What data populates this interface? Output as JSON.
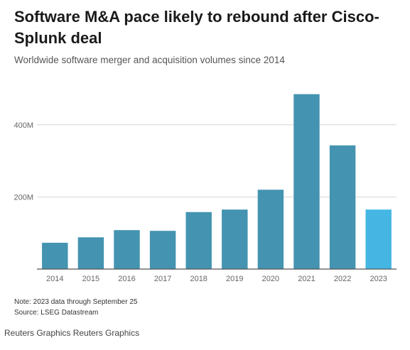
{
  "header": {
    "title": "Software M&A pace likely to rebound after Cisco-Splunk deal",
    "subtitle": "Worldwide software merger and acquisition volumes since 2014"
  },
  "footer": {
    "note": "Note: 2023 data through September 25",
    "source": "Source: LSEG Datastream",
    "credit": "Reuters Graphics Reuters Graphics"
  },
  "colors": {
    "bar": "#4493b1",
    "highlight": "#45b6e3",
    "grid": "#d6d6d6",
    "axis": "#555555",
    "tick_text": "#666666"
  },
  "chart_data": {
    "type": "bar",
    "categories": [
      "2014",
      "2015",
      "2016",
      "2017",
      "2018",
      "2019",
      "2020",
      "2021",
      "2022",
      "2023"
    ],
    "values": [
      73,
      88,
      108,
      106,
      158,
      165,
      220,
      485,
      343,
      165
    ],
    "highlight_category": "2023",
    "y_ticks": [
      200,
      400
    ],
    "y_tick_labels": [
      "200M",
      "400M"
    ],
    "ylim": [
      0,
      500
    ],
    "grid": true,
    "legend": "none",
    "xlabel": "",
    "ylabel": ""
  }
}
